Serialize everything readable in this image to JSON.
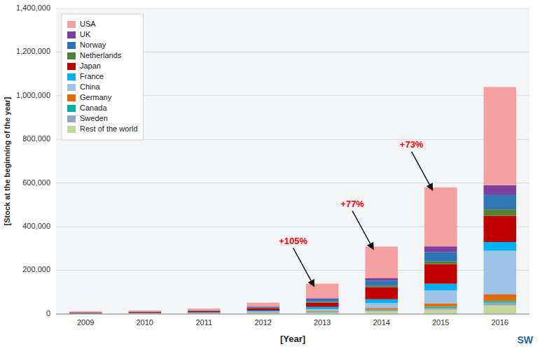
{
  "chart_data": {
    "type": "bar",
    "stacked": true,
    "xlabel": "[Year]",
    "ylabel": "[Stock at the beginning of the year]",
    "categories": [
      "2009",
      "2010",
      "2011",
      "2012",
      "2013",
      "2014",
      "2015",
      "2016"
    ],
    "series": [
      {
        "name": "Rest of the world",
        "color": "#C4D79B",
        "values": [
          1000,
          1200,
          2000,
          4000,
          6000,
          12000,
          20000,
          40000
        ]
      },
      {
        "name": "Sweden",
        "color": "#8EA9C1",
        "values": [
          500,
          600,
          800,
          1500,
          3000,
          5000,
          9000,
          13000
        ]
      },
      {
        "name": "Canada",
        "color": "#00B0A0",
        "values": [
          300,
          400,
          500,
          800,
          1500,
          3000,
          5000,
          7000
        ]
      },
      {
        "name": "Germany",
        "color": "#E36C09",
        "values": [
          200,
          400,
          600,
          2000,
          4000,
          8000,
          15000,
          30000
        ]
      },
      {
        "name": "China",
        "color": "#9DC3E6",
        "values": [
          500,
          800,
          1200,
          3000,
          8000,
          22000,
          60000,
          200000
        ]
      },
      {
        "name": "France",
        "color": "#00B0F0",
        "values": [
          1500,
          1800,
          2500,
          5000,
          10000,
          18000,
          30000,
          40000
        ]
      },
      {
        "name": "Japan",
        "color": "#C00000",
        "values": [
          3000,
          4000,
          6000,
          10000,
          20000,
          55000,
          90000,
          120000
        ]
      },
      {
        "name": "Netherlands",
        "color": "#548235",
        "values": [
          300,
          400,
          600,
          1000,
          3000,
          6000,
          12000,
          30000
        ]
      },
      {
        "name": "Norway",
        "color": "#2E75B6",
        "values": [
          1000,
          1500,
          2500,
          5000,
          12000,
          24000,
          42000,
          65000
        ]
      },
      {
        "name": "UK",
        "color": "#7B3F9E",
        "values": [
          400,
          600,
          1000,
          2000,
          5000,
          12000,
          27000,
          45000
        ]
      },
      {
        "name": "USA",
        "color": "#F4A0A0",
        "values": [
          3300,
          4300,
          7300,
          17700,
          66500,
          144000,
          270000,
          450000
        ]
      }
    ],
    "ylim": [
      0,
      1400000
    ],
    "yticks": [
      0,
      {
        "value": 200000,
        "label": "200,000"
      },
      {
        "value": 400000,
        "label": "400,000"
      },
      {
        "value": 600000,
        "label": "600,000"
      },
      {
        "value": 800000,
        "label": "800,000"
      },
      {
        "value": 1000000,
        "label": "1,000,000"
      },
      {
        "value": 1200000,
        "label": "1,200,000"
      },
      {
        "value": 1400000,
        "label": "1,400,000"
      }
    ],
    "grid": true,
    "legend": "upper left",
    "annotations": [
      {
        "text": "+105%",
        "x": "2013",
        "color": "red"
      },
      {
        "text": "+77%",
        "x": "2014",
        "color": "red"
      },
      {
        "text": "+73%",
        "x": "2015",
        "color": "red"
      },
      {
        "text": "SW",
        "color": "#1F5FA6"
      }
    ]
  }
}
